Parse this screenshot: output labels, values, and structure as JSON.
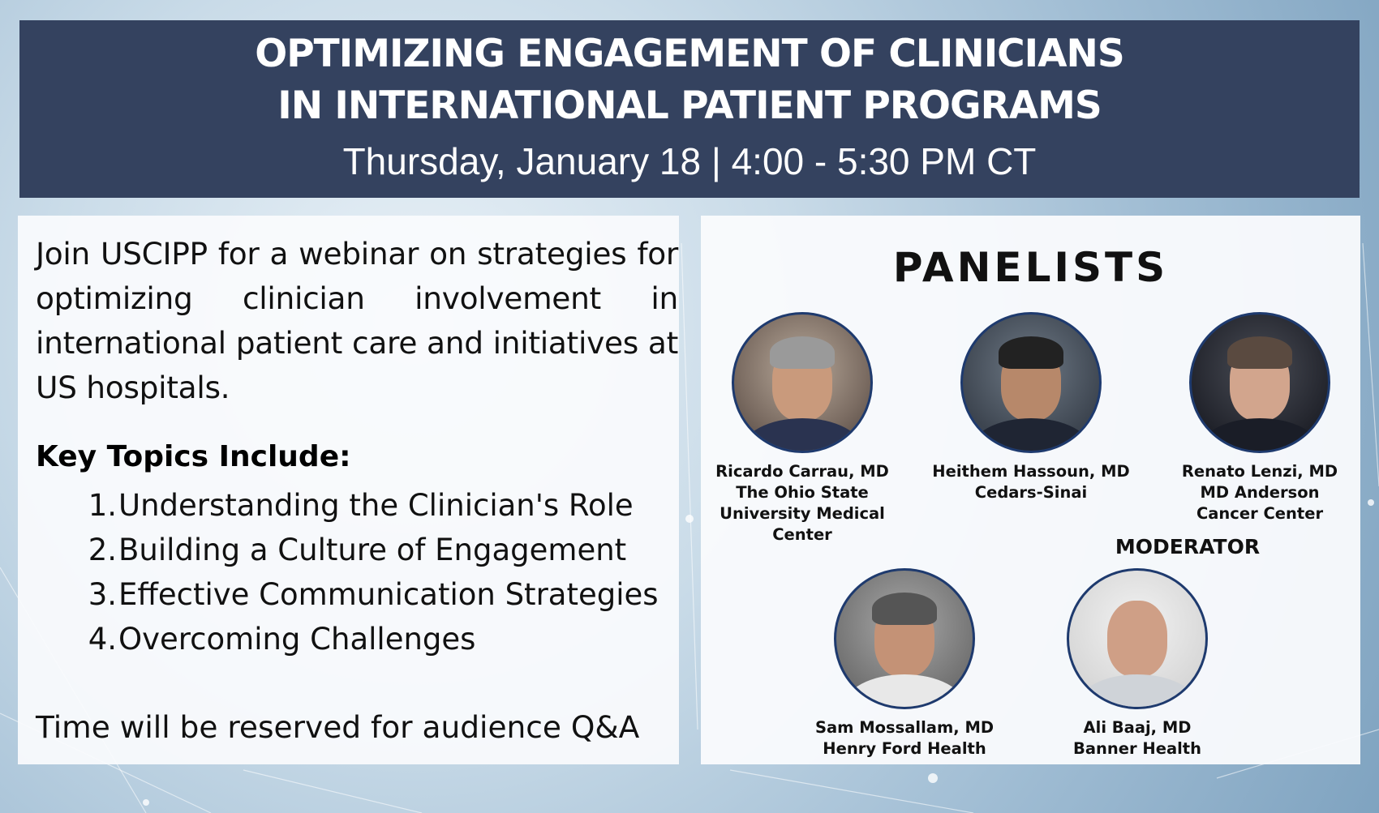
{
  "header": {
    "title_line1": "OPTIMIZING ENGAGEMENT OF CLINICIANS",
    "title_line2": "IN INTERNATIONAL PATIENT PROGRAMS",
    "date_line": "Thursday, January 18 | 4:00 - 5:30 PM CT"
  },
  "left": {
    "intro": "Join USCIPP for a webinar on strategies for optimizing clinician involvement in international patient care and initiatives at US hospitals.",
    "topics_heading": "Key Topics Include:",
    "topics": [
      {
        "num": "1.",
        "text": "Understanding the Clinician's Role"
      },
      {
        "num": "2.",
        "text": "Building a Culture of Engagement"
      },
      {
        "num": "3.",
        "text": "Effective Communication Strategies"
      },
      {
        "num": "4.",
        "text": "Overcoming Challenges"
      }
    ],
    "qa_note": "Time will be reserved for audience Q&A"
  },
  "right": {
    "panelists_title": "PANELISTS",
    "moderator_label": "MODERATOR",
    "people": [
      {
        "lines": [
          "Ricardo Carrau, MD",
          "The Ohio State",
          "University Medical",
          "Center"
        ]
      },
      {
        "lines": [
          "Heithem Hassoun, MD",
          "Cedars-Sinai"
        ]
      },
      {
        "lines": [
          "Renato Lenzi, MD",
          "MD Anderson",
          "Cancer Center"
        ]
      },
      {
        "lines": [
          "Sam Mossallam, MD",
          "Henry Ford Health"
        ]
      },
      {
        "lines": [
          "Ali Baaj, MD",
          "Banner Health"
        ]
      }
    ]
  },
  "colors": {
    "header_bg": "#34425f",
    "avatar_border": "#1e3a6e"
  }
}
